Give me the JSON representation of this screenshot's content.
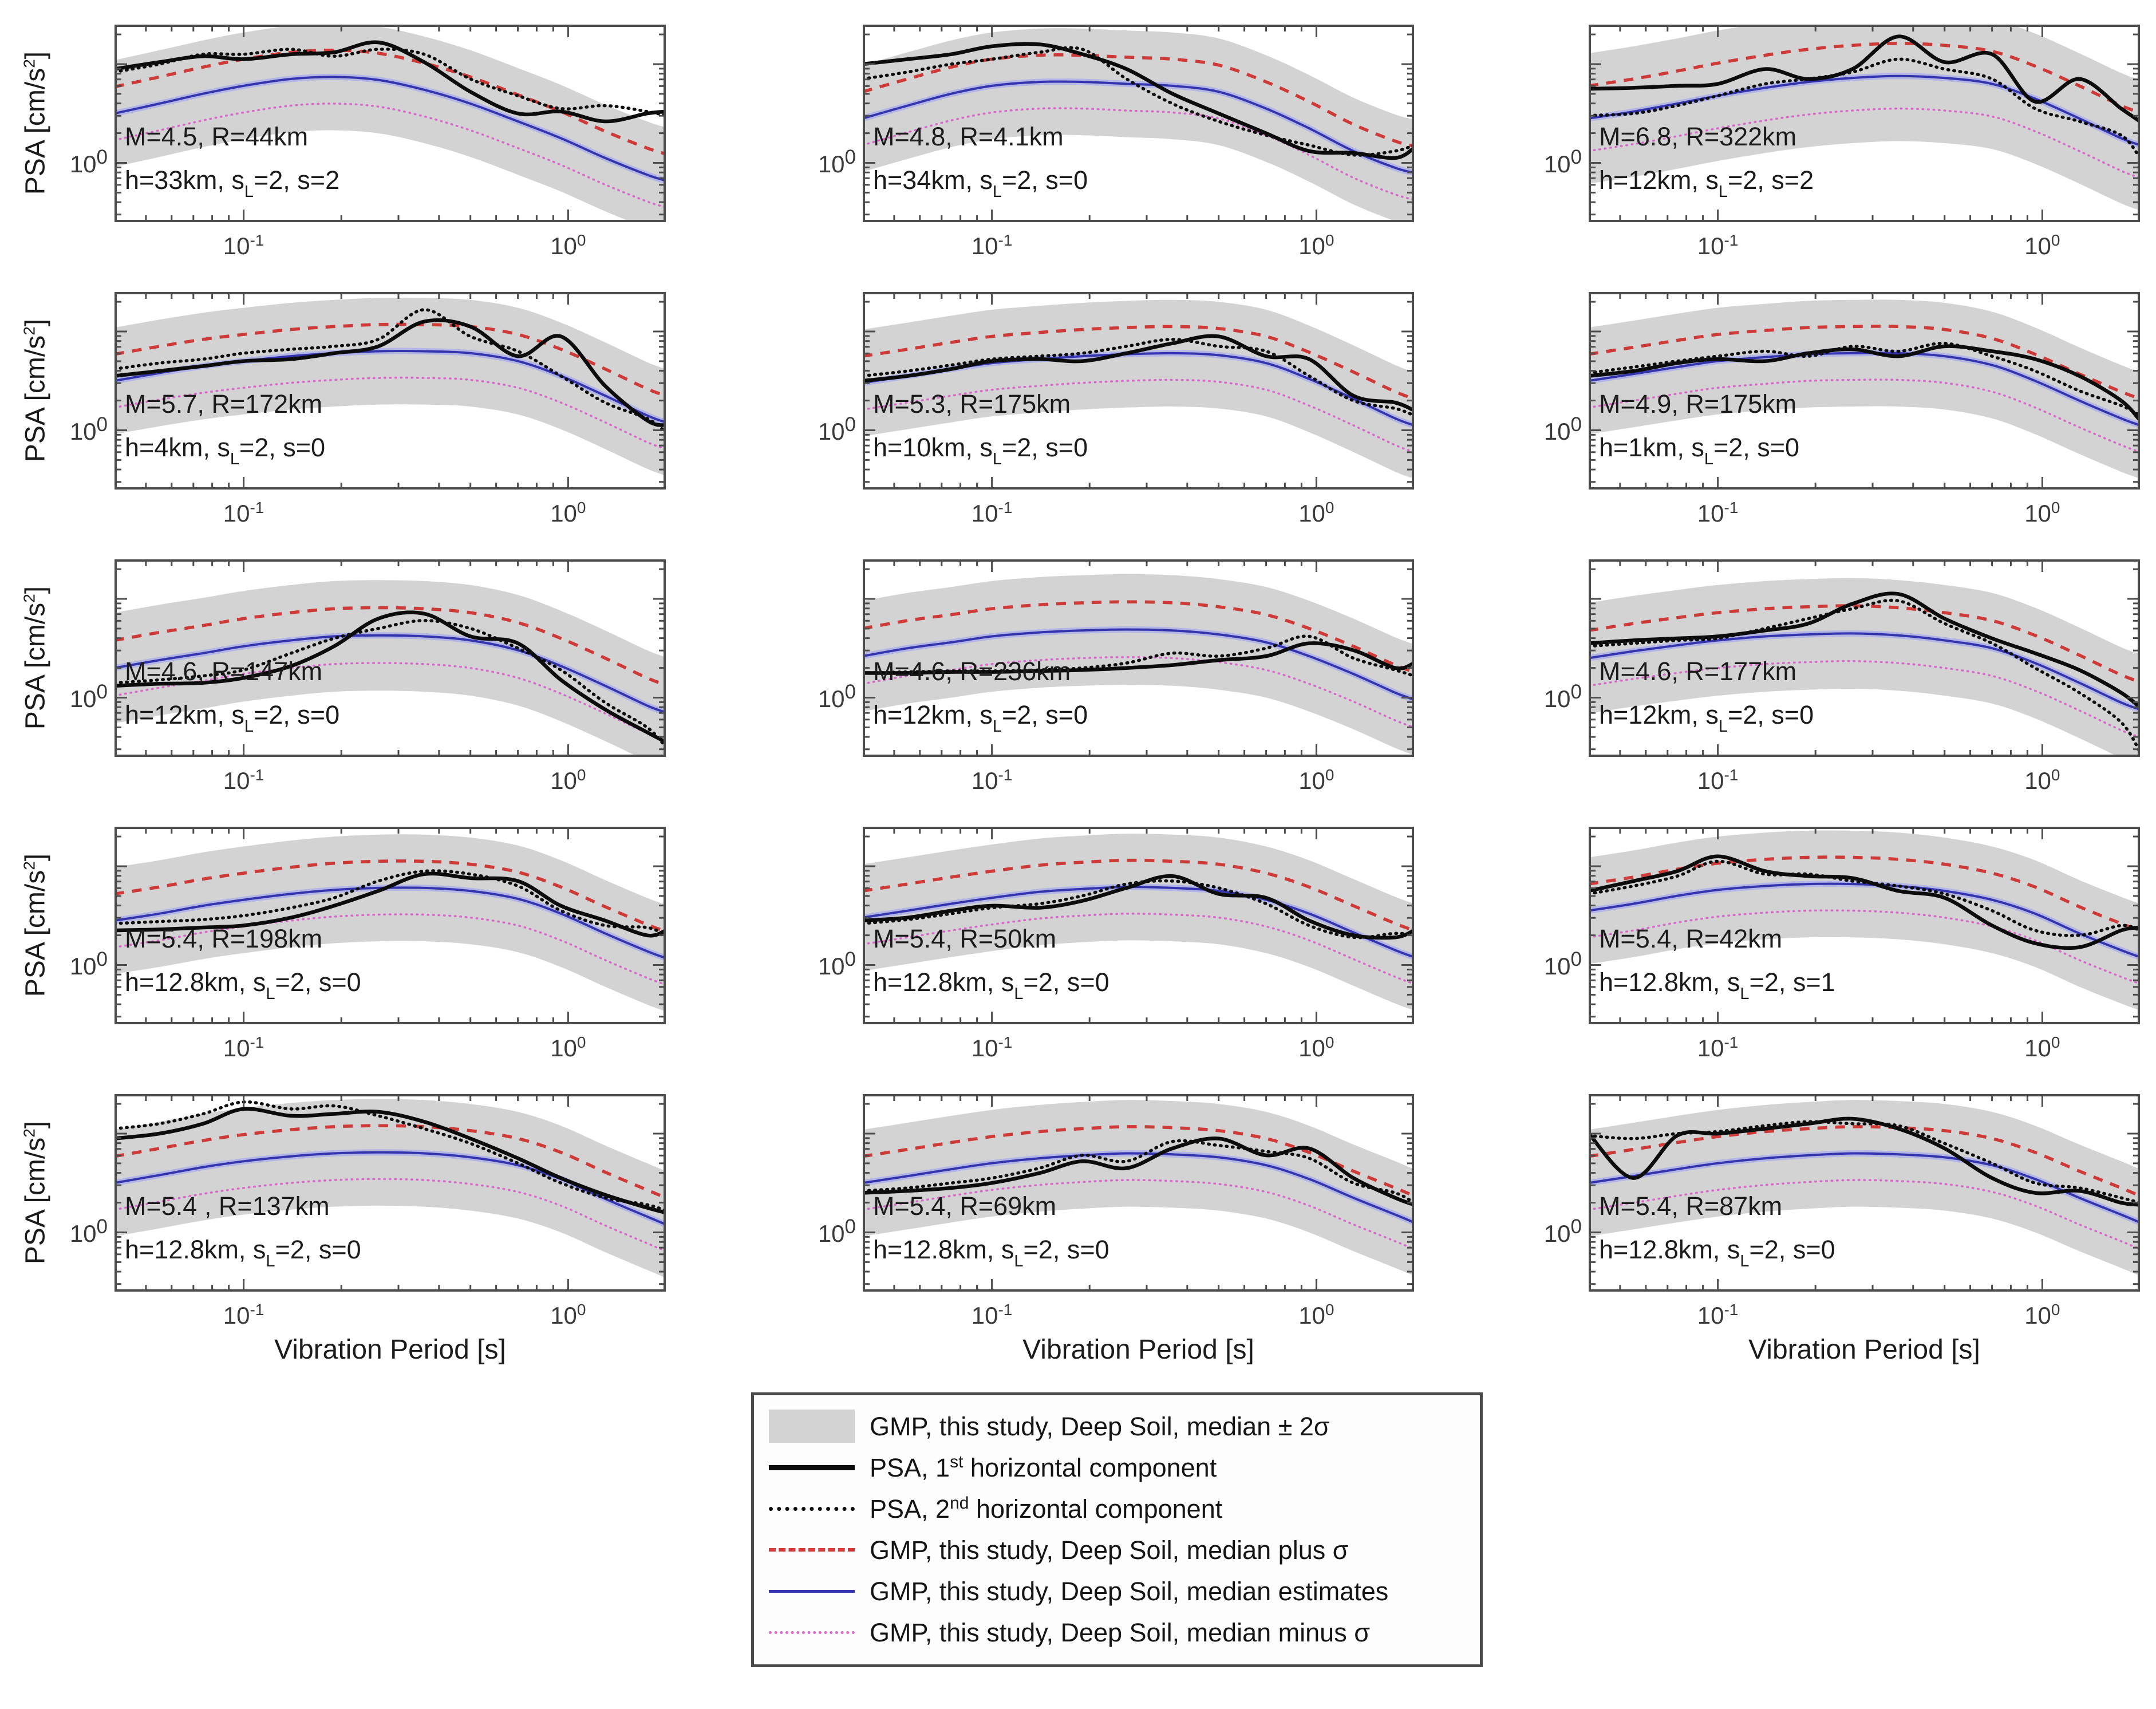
{
  "figure": {
    "x_label": "Vibration Period [s]",
    "y_label": {
      "pre": "PSA [cm/s",
      "sup": "2",
      "post": "]"
    },
    "x_ticks": {
      "t1_pre": "10",
      "t1_sup": "-1",
      "t2_pre": "10",
      "t2_sup": "0"
    },
    "y_tick": {
      "pre": "10",
      "sup": "0"
    }
  },
  "colors": {
    "band": "#d3d3d3",
    "psa_black": "#0c0c0c",
    "median_plus_red": "#ce3a37",
    "median_blue": "#3435ac",
    "median_blue_halo": "#b3b5e6",
    "median_minus_magenta": "#d966cb",
    "frame": "#4d4d4d"
  },
  "legend": {
    "items": [
      {
        "swatch": "band",
        "pre": "GMP, this study, Deep Soil, median ± 2σ",
        "sup": "",
        "post": ""
      },
      {
        "swatch": "psa1",
        "pre": "PSA, 1",
        "sup": "st",
        "post": " horizontal component"
      },
      {
        "swatch": "psa2",
        "pre": "PSA, 2",
        "sup": "nd",
        "post": " horizontal component"
      },
      {
        "swatch": "plus",
        "pre": "GMP, this study, Deep Soil, median plus σ",
        "sup": "",
        "post": ""
      },
      {
        "swatch": "med",
        "pre": "GMP, this study, Deep Soil, median estimates",
        "sup": "",
        "post": ""
      },
      {
        "swatch": "minus",
        "pre": "GMP, this study, Deep Soil, median minus σ",
        "sup": "",
        "post": ""
      }
    ]
  },
  "chart_data": {
    "type": "line",
    "grid": "5 rows x 3 cols",
    "x_axis": {
      "label": "Vibration Period [s]",
      "scale": "log",
      "range_s": [
        0.04,
        2.0
      ],
      "tick_labels": [
        "10^-1",
        "10^0"
      ]
    },
    "y_axis": {
      "label": "PSA [cm/s^2]",
      "scale": "log",
      "range_log10": [
        -0.6,
        1.4
      ],
      "tick_labels": [
        "10^0"
      ]
    },
    "units": "series values are log10(PSA in cm/s^2) sampled at shared periods",
    "periods": [
      0.04,
      0.055,
      0.075,
      0.1,
      0.14,
      0.19,
      0.26,
      0.36,
      0.5,
      0.7,
      0.95,
      1.3,
      1.75,
      2.0
    ],
    "series_meaning": {
      "median": "GMP median estimate (blue)",
      "sigma": "log10 sigma; plus/minus curves = median±sigma; band = median±2sigma",
      "psa1": "PSA 1st horizontal component (black solid)",
      "psa2": "PSA 2nd horizontal component (black dotted)"
    },
    "subplots": [
      {
        "id": "r1c1",
        "ann1": "M=4.5, R=44km",
        "ann2_pre": "h=33km, s",
        "ann2_sub": "L",
        "ann2_post": "=2, s=2",
        "sigma": 0.27,
        "median": [
          0.5,
          0.6,
          0.7,
          0.78,
          0.85,
          0.87,
          0.84,
          0.74,
          0.6,
          0.42,
          0.25,
          0.05,
          -0.12,
          -0.18
        ],
        "psa1": [
          0.95,
          1.02,
          1.08,
          1.05,
          1.1,
          1.12,
          1.22,
          1.02,
          0.72,
          0.5,
          0.52,
          0.42,
          0.5,
          0.52
        ],
        "psa2": [
          0.92,
          1.0,
          1.1,
          1.1,
          1.15,
          1.08,
          1.15,
          1.1,
          0.85,
          0.68,
          0.55,
          0.58,
          0.52,
          0.48
        ]
      },
      {
        "id": "r1c2",
        "ann1": "M=4.8, R=4.1km",
        "ann2_pre": "h=34km, s",
        "ann2_sub": "L",
        "ann2_post": "=2, s=0",
        "sigma": 0.27,
        "median": [
          0.45,
          0.58,
          0.7,
          0.78,
          0.82,
          0.82,
          0.8,
          0.78,
          0.72,
          0.55,
          0.35,
          0.12,
          -0.05,
          -0.1
        ],
        "psa1": [
          1.0,
          1.05,
          1.1,
          1.18,
          1.2,
          1.1,
          0.95,
          0.7,
          0.5,
          0.3,
          0.12,
          0.1,
          0.05,
          0.15
        ],
        "psa2": [
          0.85,
          0.92,
          1.0,
          1.05,
          1.12,
          1.15,
          0.85,
          0.6,
          0.42,
          0.28,
          0.18,
          0.08,
          0.12,
          0.18
        ]
      },
      {
        "id": "r1c3",
        "ann1": "M=6.8, R=322km",
        "ann2_pre": "h=12km, s",
        "ann2_sub": "L",
        "ann2_post": "=2, s=2",
        "sigma": 0.33,
        "median": [
          0.45,
          0.52,
          0.6,
          0.68,
          0.76,
          0.82,
          0.86,
          0.88,
          0.86,
          0.8,
          0.65,
          0.45,
          0.25,
          0.18
        ],
        "psa1": [
          0.75,
          0.76,
          0.78,
          0.8,
          0.95,
          0.85,
          0.95,
          1.28,
          1.02,
          1.1,
          0.62,
          0.85,
          0.55,
          0.42
        ],
        "psa2": [
          0.48,
          0.5,
          0.58,
          0.68,
          0.8,
          0.85,
          0.92,
          1.05,
          0.95,
          0.85,
          0.55,
          0.42,
          0.28,
          0.05
        ]
      },
      {
        "id": "r2c1",
        "ann1": "M=5.7, R=172km",
        "ann2_pre": "h=4km, s",
        "ann2_sub": "L",
        "ann2_post": "=2, s=0",
        "sigma": 0.27,
        "median": [
          0.5,
          0.58,
          0.65,
          0.7,
          0.75,
          0.78,
          0.8,
          0.8,
          0.78,
          0.7,
          0.55,
          0.35,
          0.15,
          0.08
        ],
        "psa1": [
          0.55,
          0.6,
          0.65,
          0.7,
          0.72,
          0.78,
          0.85,
          1.1,
          1.05,
          0.75,
          0.95,
          0.45,
          0.1,
          0.05
        ],
        "psa2": [
          0.62,
          0.68,
          0.72,
          0.78,
          0.82,
          0.85,
          0.92,
          1.22,
          0.95,
          0.8,
          0.55,
          0.28,
          0.12,
          -0.02
        ]
      },
      {
        "id": "r2c2",
        "ann1": "M=5.3, R=175km",
        "ann2_pre": "h=10km, s",
        "ann2_sub": "L",
        "ann2_post": "=2, s=0",
        "sigma": 0.27,
        "median": [
          0.48,
          0.55,
          0.62,
          0.68,
          0.72,
          0.75,
          0.77,
          0.78,
          0.76,
          0.68,
          0.52,
          0.32,
          0.12,
          0.05
        ],
        "psa1": [
          0.5,
          0.55,
          0.62,
          0.7,
          0.72,
          0.7,
          0.78,
          0.88,
          0.95,
          0.75,
          0.72,
          0.35,
          0.28,
          0.2
        ],
        "psa2": [
          0.55,
          0.6,
          0.66,
          0.72,
          0.75,
          0.78,
          0.85,
          0.92,
          0.85,
          0.8,
          0.55,
          0.3,
          0.22,
          0.15
        ]
      },
      {
        "id": "r2c3",
        "ann1": "M=4.9, R=175km",
        "ann2_pre": "h=1km, s",
        "ann2_sub": "L",
        "ann2_post": "=2, s=0",
        "sigma": 0.27,
        "median": [
          0.5,
          0.57,
          0.64,
          0.7,
          0.74,
          0.77,
          0.78,
          0.78,
          0.75,
          0.66,
          0.5,
          0.3,
          0.12,
          0.05
        ],
        "psa1": [
          0.55,
          0.6,
          0.68,
          0.72,
          0.7,
          0.78,
          0.82,
          0.75,
          0.85,
          0.8,
          0.72,
          0.55,
          0.3,
          0.1
        ],
        "psa2": [
          0.58,
          0.64,
          0.7,
          0.75,
          0.8,
          0.75,
          0.85,
          0.8,
          0.88,
          0.75,
          0.6,
          0.4,
          0.25,
          0.15
        ]
      },
      {
        "id": "r3c1",
        "ann1": "M=4.6, R=147km",
        "ann2_pre": "h=12km, s",
        "ann2_sub": "L",
        "ann2_post": "=2, s=0",
        "sigma": 0.28,
        "median": [
          0.3,
          0.38,
          0.45,
          0.52,
          0.58,
          0.62,
          0.63,
          0.62,
          0.58,
          0.48,
          0.32,
          0.12,
          -0.08,
          -0.15
        ],
        "psa1": [
          0.12,
          0.14,
          0.15,
          0.2,
          0.32,
          0.52,
          0.8,
          0.85,
          0.62,
          0.55,
          0.18,
          -0.12,
          -0.35,
          -0.45
        ],
        "psa2": [
          0.15,
          0.18,
          0.22,
          0.28,
          0.45,
          0.6,
          0.7,
          0.78,
          0.7,
          0.5,
          0.28,
          -0.05,
          -0.3,
          -0.5
        ]
      },
      {
        "id": "r3c2",
        "ann1": "M=4.6, R=236km",
        "ann2_pre": "h=12km, s",
        "ann2_sub": "L",
        "ann2_post": "=2, s=0",
        "sigma": 0.28,
        "median": [
          0.42,
          0.5,
          0.56,
          0.62,
          0.66,
          0.68,
          0.69,
          0.68,
          0.64,
          0.56,
          0.42,
          0.24,
          0.05,
          -0.02
        ],
        "psa1": [
          0.25,
          0.25,
          0.26,
          0.26,
          0.27,
          0.28,
          0.3,
          0.33,
          0.38,
          0.42,
          0.55,
          0.48,
          0.3,
          0.35
        ],
        "psa2": [
          0.25,
          0.26,
          0.27,
          0.27,
          0.28,
          0.3,
          0.35,
          0.45,
          0.42,
          0.5,
          0.62,
          0.4,
          0.28,
          0.22
        ]
      },
      {
        "id": "r3c3",
        "ann1": "M=4.6, R=177km",
        "ann2_pre": "h=12km, s",
        "ann2_sub": "L",
        "ann2_post": "=2, s=0",
        "sigma": 0.28,
        "median": [
          0.4,
          0.47,
          0.53,
          0.58,
          0.62,
          0.64,
          0.65,
          0.63,
          0.58,
          0.5,
          0.35,
          0.15,
          -0.05,
          -0.12
        ],
        "psa1": [
          0.55,
          0.58,
          0.6,
          0.62,
          0.68,
          0.75,
          0.95,
          1.05,
          0.8,
          0.6,
          0.45,
          0.28,
          0.05,
          -0.1
        ],
        "psa2": [
          0.52,
          0.55,
          0.58,
          0.6,
          0.7,
          0.8,
          0.9,
          0.98,
          0.75,
          0.55,
          0.3,
          0.05,
          -0.25,
          -0.55
        ]
      },
      {
        "id": "r4c1",
        "ann1": "M=5.4, R=198km",
        "ann2_pre": "h=12.8km, s",
        "ann2_sub": "L",
        "ann2_post": "=2, s=0",
        "sigma": 0.27,
        "median": [
          0.45,
          0.52,
          0.6,
          0.66,
          0.72,
          0.76,
          0.78,
          0.78,
          0.75,
          0.67,
          0.52,
          0.32,
          0.14,
          0.07
        ],
        "psa1": [
          0.35,
          0.36,
          0.38,
          0.4,
          0.48,
          0.6,
          0.75,
          0.92,
          0.88,
          0.85,
          0.6,
          0.45,
          0.3,
          0.35
        ],
        "psa2": [
          0.42,
          0.44,
          0.46,
          0.5,
          0.58,
          0.68,
          0.85,
          0.95,
          0.92,
          0.8,
          0.55,
          0.4,
          0.38,
          0.3
        ]
      },
      {
        "id": "r4c2",
        "ann1": "M=5.4, R=50km",
        "ann2_pre": "h=12.8km, s",
        "ann2_sub": "L",
        "ann2_post": "=2, s=0",
        "sigma": 0.27,
        "median": [
          0.48,
          0.55,
          0.62,
          0.68,
          0.74,
          0.77,
          0.79,
          0.78,
          0.75,
          0.66,
          0.52,
          0.33,
          0.15,
          0.08
        ],
        "psa1": [
          0.45,
          0.48,
          0.55,
          0.6,
          0.58,
          0.65,
          0.78,
          0.9,
          0.72,
          0.68,
          0.45,
          0.3,
          0.28,
          0.35
        ],
        "psa2": [
          0.42,
          0.46,
          0.52,
          0.58,
          0.62,
          0.7,
          0.82,
          0.85,
          0.78,
          0.62,
          0.4,
          0.28,
          0.32,
          0.3
        ]
      },
      {
        "id": "r4c3",
        "ann1": "M=5.4, R=42km",
        "ann2_pre": "h=12.8km, s",
        "ann2_sub": "L",
        "ann2_post": "=2, s=1",
        "sigma": 0.27,
        "median": [
          0.55,
          0.62,
          0.7,
          0.76,
          0.8,
          0.82,
          0.82,
          0.8,
          0.75,
          0.66,
          0.52,
          0.32,
          0.15,
          0.08
        ],
        "psa1": [
          0.75,
          0.85,
          0.95,
          1.1,
          0.95,
          0.9,
          0.88,
          0.75,
          0.68,
          0.4,
          0.22,
          0.18,
          0.35,
          0.38
        ],
        "psa2": [
          0.72,
          0.8,
          0.9,
          1.05,
          0.92,
          0.92,
          0.85,
          0.8,
          0.72,
          0.55,
          0.35,
          0.3,
          0.4,
          0.35
        ]
      },
      {
        "id": "r5c1",
        "ann1": "M=5.4 , R=137km",
        "ann2_pre": "h=12.8km, s",
        "ann2_sub": "L",
        "ann2_post": "=2, s=0",
        "sigma": 0.27,
        "median": [
          0.5,
          0.58,
          0.66,
          0.72,
          0.77,
          0.8,
          0.81,
          0.8,
          0.76,
          0.68,
          0.54,
          0.34,
          0.16,
          0.08
        ],
        "psa1": [
          0.95,
          1.0,
          1.1,
          1.25,
          1.18,
          1.2,
          1.22,
          1.12,
          0.95,
          0.75,
          0.55,
          0.38,
          0.25,
          0.2
        ],
        "psa2": [
          1.05,
          1.1,
          1.2,
          1.32,
          1.25,
          1.28,
          1.18,
          1.05,
          0.9,
          0.7,
          0.5,
          0.35,
          0.28,
          0.22
        ]
      },
      {
        "id": "r5c2",
        "ann1": "M=5.4, R=69km",
        "ann2_pre": "h=12.8km, s",
        "ann2_sub": "L",
        "ann2_post": "=2, s=0",
        "sigma": 0.27,
        "median": [
          0.5,
          0.57,
          0.64,
          0.7,
          0.75,
          0.78,
          0.8,
          0.79,
          0.76,
          0.68,
          0.54,
          0.35,
          0.18,
          0.1
        ],
        "psa1": [
          0.4,
          0.42,
          0.45,
          0.5,
          0.6,
          0.72,
          0.65,
          0.85,
          0.95,
          0.78,
          0.85,
          0.55,
          0.35,
          0.28
        ],
        "psa2": [
          0.42,
          0.45,
          0.5,
          0.55,
          0.65,
          0.78,
          0.72,
          0.92,
          0.88,
          0.82,
          0.75,
          0.5,
          0.4,
          0.3
        ]
      },
      {
        "id": "r5c3",
        "ann1": "M=5.4, R=87km",
        "ann2_pre": "h=12.8km, s",
        "ann2_sub": "L",
        "ann2_post": "=2, s=0",
        "sigma": 0.27,
        "median": [
          0.5,
          0.57,
          0.64,
          0.7,
          0.75,
          0.78,
          0.8,
          0.79,
          0.76,
          0.68,
          0.54,
          0.35,
          0.18,
          0.1
        ],
        "psa1": [
          1.0,
          0.55,
          0.98,
          1.0,
          1.05,
          1.1,
          1.15,
          1.05,
          0.85,
          0.55,
          0.4,
          0.42,
          0.3,
          0.28
        ],
        "psa2": [
          0.98,
          0.95,
          1.0,
          1.02,
          1.08,
          1.12,
          1.1,
          1.08,
          0.9,
          0.7,
          0.5,
          0.45,
          0.35,
          0.3
        ]
      }
    ]
  }
}
